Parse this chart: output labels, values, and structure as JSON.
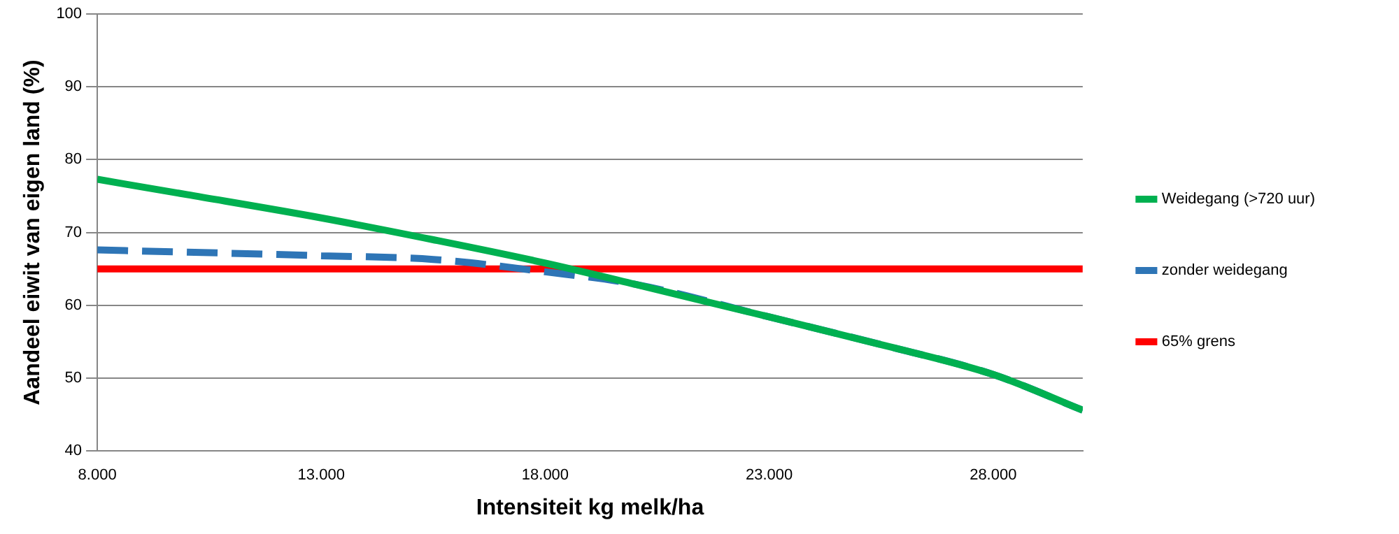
{
  "chart_data": {
    "type": "line",
    "xlabel": "Intensiteit kg melk/ha",
    "ylabel": "Aandeel eiwit van eigen land (%)",
    "x": [
      8000,
      10000,
      13000,
      15500,
      18000,
      20000,
      23000,
      25500,
      28000,
      30000
    ],
    "series": [
      {
        "name": "Weidegang (>720 uur)",
        "color": "#00b050",
        "values": [
          77.3,
          75.2,
          72.0,
          69.0,
          65.8,
          62.9,
          58.4,
          54.6,
          50.5,
          45.6
        ],
        "line_style": "solid"
      },
      {
        "name": "zonder weidegang",
        "color": "#2e75b6",
        "values": [
          67.6,
          67.3,
          66.8,
          66.3,
          64.6,
          62.9,
          58.4,
          54.6,
          50.5,
          45.6
        ],
        "line_style": "dashed"
      },
      {
        "name": "65% grens",
        "color": "#ff0000",
        "values": [
          65,
          65,
          65,
          65,
          65,
          65,
          65,
          65,
          65,
          65
        ],
        "line_style": "solid"
      }
    ],
    "xlim": [
      8000,
      30000
    ],
    "xticks": [
      {
        "value": 8000,
        "label": "8.000"
      },
      {
        "value": 13000,
        "label": "13.000"
      },
      {
        "value": 18000,
        "label": "18.000"
      },
      {
        "value": 23000,
        "label": "23.000"
      },
      {
        "value": 28000,
        "label": "28.000"
      }
    ],
    "ylim": [
      40,
      100
    ],
    "yticks": [
      40,
      50,
      60,
      70,
      80,
      90,
      100
    ],
    "grid": "y",
    "legend": "right",
    "marker": "none"
  }
}
